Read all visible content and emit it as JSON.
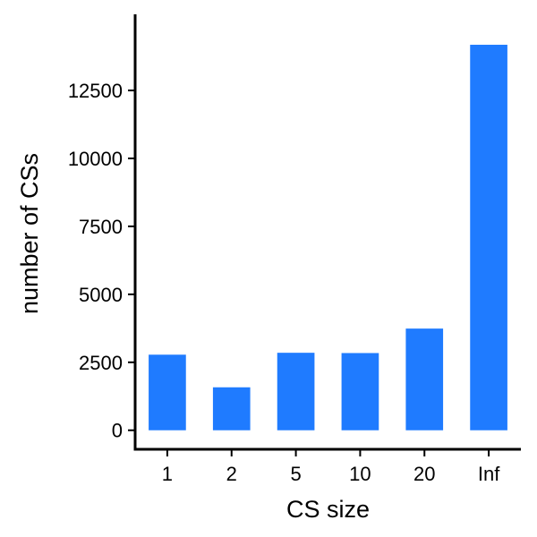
{
  "chart_data": {
    "type": "bar",
    "title": "",
    "xlabel": "CS size",
    "ylabel": "number of CSs",
    "categories": [
      "1",
      "2",
      "5",
      "10",
      "20",
      "Inf"
    ],
    "values": [
      2780,
      1580,
      2850,
      2840,
      3740,
      14180
    ],
    "ylim": [
      -700,
      15300
    ],
    "yticks": [
      0,
      2500,
      5000,
      7500,
      10000,
      12500
    ],
    "bar_color": "#1f7bff",
    "grid": false,
    "legend": "none"
  }
}
